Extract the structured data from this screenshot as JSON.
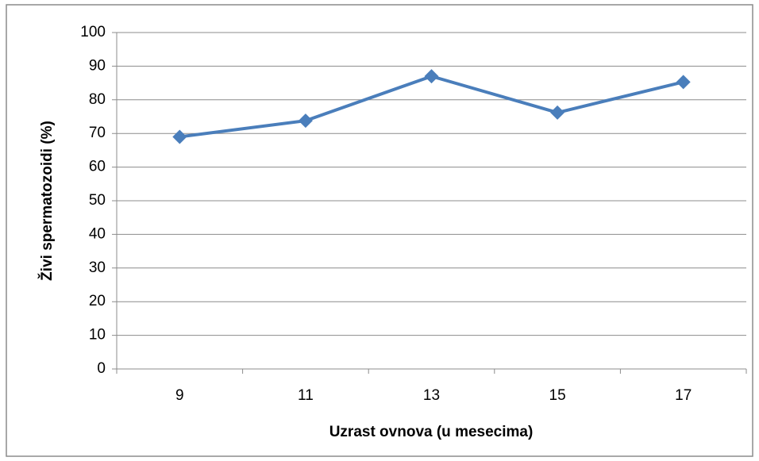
{
  "chart_data": {
    "type": "line",
    "x_label": "Uzrast ovnova (u mesecima)",
    "y_label": "Živi spermatozoidi (%)",
    "categories": [
      "9",
      "11",
      "13",
      "15",
      "17"
    ],
    "series": [
      {
        "color": "#4a7ebb",
        "values": [
          69,
          73.8,
          87,
          76.2,
          85.3
        ]
      }
    ],
    "ylim": [
      0,
      100
    ],
    "yticks": [
      0,
      10,
      20,
      30,
      40,
      50,
      60,
      70,
      80,
      90,
      100
    ],
    "grid": true
  }
}
